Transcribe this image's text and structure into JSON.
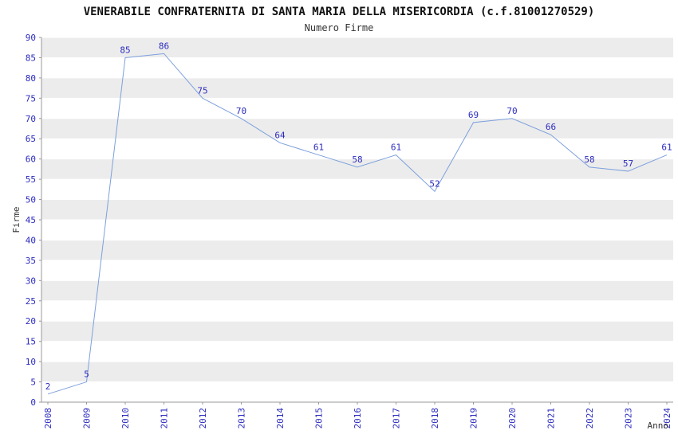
{
  "header": {
    "title": "VENERABILE CONFRATERNITA DI SANTA MARIA DELLA MISERICORDIA (c.f.81001270529)",
    "subtitle": "Numero Firme"
  },
  "chart_data": {
    "type": "line",
    "title": "VENERABILE CONFRATERNITA DI SANTA MARIA DELLA MISERICORDIA (c.f.81001270529)",
    "subtitle": "Numero Firme",
    "x": [
      "2008",
      "2009",
      "2010",
      "2011",
      "2012",
      "2013",
      "2014",
      "2015",
      "2016",
      "2017",
      "2018",
      "2019",
      "2020",
      "2021",
      "2022",
      "2023",
      "2024"
    ],
    "values": [
      2,
      5,
      85,
      86,
      75,
      70,
      64,
      61,
      58,
      61,
      52,
      69,
      70,
      66,
      58,
      57,
      61
    ],
    "xlabel": "Anno",
    "ylabel": "Firme",
    "ylim": [
      0,
      90
    ],
    "ytick_step": 5,
    "grid": true,
    "legend": "none",
    "band_colors": [
      "#ffffff",
      "#ececec"
    ],
    "line_color": "#7ca0dd",
    "value_label_color": "#2b2bbf",
    "tick_label_color": "#2b2bbf",
    "axis_color": "#999999",
    "axis_label_color": "#333333"
  }
}
